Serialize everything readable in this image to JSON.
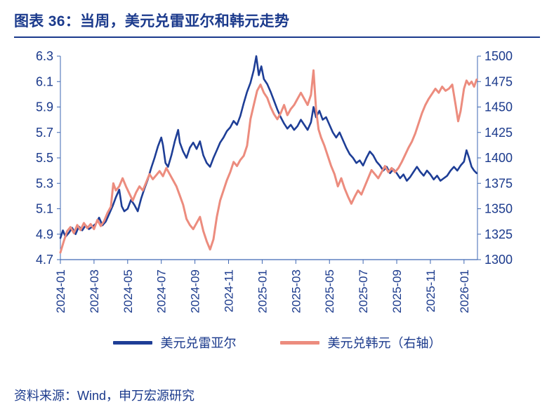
{
  "title": "图表 36：当周，美元兑雷亚尔和韩元走势",
  "source": "资料来源：Wind，申万宏源研究",
  "colors": {
    "text": "#1B3A8C",
    "axis": "#3E67B3"
  },
  "chart_data": {
    "type": "line",
    "title": "当周，美元兑雷亚尔和韩元走势",
    "grid": false,
    "legend_position": "bottom",
    "x_unit": "months since 2024-01",
    "x_max": 24.8,
    "x_ticks": {
      "labels": [
        "2024-01",
        "2024-03",
        "2024-05",
        "2024-07",
        "2024-09",
        "2024-11",
        "2025-01",
        "2025-03",
        "2025-05",
        "2025-07",
        "2025-09",
        "2025-11",
        "2026-01"
      ],
      "positions": [
        0,
        2,
        4,
        6,
        8,
        10,
        12,
        14,
        16,
        18,
        20,
        22,
        24
      ]
    },
    "left_axis": {
      "min": 4.7,
      "max": 6.3,
      "tick_labels": [
        "4.7",
        "4.9",
        "5.1",
        "5.3",
        "5.5",
        "5.7",
        "5.9",
        "6.1",
        "6.3"
      ]
    },
    "right_axis": {
      "min": 1300,
      "max": 1500,
      "tick_labels": [
        "1300",
        "1325",
        "1350",
        "1375",
        "1400",
        "1425",
        "1450",
        "1475",
        "1500"
      ]
    },
    "series": [
      {
        "id": "brl",
        "name": "美元兑雷亚尔",
        "axis": "left",
        "color": "#1E3E96",
        "points": [
          [
            0,
            4.87
          ],
          [
            0.15,
            4.93
          ],
          [
            0.3,
            4.88
          ],
          [
            0.5,
            4.91
          ],
          [
            0.7,
            4.95
          ],
          [
            0.9,
            4.9
          ],
          [
            1.1,
            4.96
          ],
          [
            1.3,
            4.93
          ],
          [
            1.5,
            4.97
          ],
          [
            1.7,
            4.94
          ],
          [
            1.9,
            4.96
          ],
          [
            2.1,
            4.98
          ],
          [
            2.3,
            5.03
          ],
          [
            2.5,
            4.97
          ],
          [
            2.7,
            5.0
          ],
          [
            2.9,
            5.06
          ],
          [
            3.1,
            5.12
          ],
          [
            3.3,
            5.19
          ],
          [
            3.5,
            5.25
          ],
          [
            3.65,
            5.12
          ],
          [
            3.8,
            5.08
          ],
          [
            4.0,
            5.1
          ],
          [
            4.2,
            5.17
          ],
          [
            4.4,
            5.13
          ],
          [
            4.6,
            5.08
          ],
          [
            4.8,
            5.18
          ],
          [
            5.0,
            5.26
          ],
          [
            5.2,
            5.33
          ],
          [
            5.4,
            5.42
          ],
          [
            5.6,
            5.5
          ],
          [
            5.8,
            5.59
          ],
          [
            6.0,
            5.66
          ],
          [
            6.1,
            5.6
          ],
          [
            6.25,
            5.46
          ],
          [
            6.4,
            5.43
          ],
          [
            6.6,
            5.52
          ],
          [
            6.8,
            5.63
          ],
          [
            7.0,
            5.72
          ],
          [
            7.1,
            5.62
          ],
          [
            7.3,
            5.55
          ],
          [
            7.5,
            5.5
          ],
          [
            7.7,
            5.58
          ],
          [
            7.9,
            5.62
          ],
          [
            8.1,
            5.57
          ],
          [
            8.3,
            5.63
          ],
          [
            8.5,
            5.52
          ],
          [
            8.7,
            5.46
          ],
          [
            8.9,
            5.43
          ],
          [
            9.1,
            5.5
          ],
          [
            9.3,
            5.56
          ],
          [
            9.5,
            5.62
          ],
          [
            9.7,
            5.66
          ],
          [
            9.9,
            5.71
          ],
          [
            10.1,
            5.74
          ],
          [
            10.3,
            5.79
          ],
          [
            10.5,
            5.76
          ],
          [
            10.7,
            5.83
          ],
          [
            10.9,
            5.93
          ],
          [
            11.1,
            6.02
          ],
          [
            11.3,
            6.09
          ],
          [
            11.5,
            6.19
          ],
          [
            11.65,
            6.3
          ],
          [
            11.8,
            6.15
          ],
          [
            11.95,
            6.22
          ],
          [
            12.1,
            6.12
          ],
          [
            12.3,
            6.08
          ],
          [
            12.5,
            6.02
          ],
          [
            12.7,
            5.95
          ],
          [
            12.9,
            5.88
          ],
          [
            13.1,
            5.82
          ],
          [
            13.3,
            5.77
          ],
          [
            13.5,
            5.73
          ],
          [
            13.7,
            5.76
          ],
          [
            13.9,
            5.72
          ],
          [
            14.1,
            5.75
          ],
          [
            14.3,
            5.8
          ],
          [
            14.5,
            5.76
          ],
          [
            14.7,
            5.72
          ],
          [
            14.9,
            5.78
          ],
          [
            15.05,
            5.9
          ],
          [
            15.2,
            5.82
          ],
          [
            15.4,
            5.87
          ],
          [
            15.6,
            5.8
          ],
          [
            15.8,
            5.82
          ],
          [
            16.0,
            5.76
          ],
          [
            16.2,
            5.7
          ],
          [
            16.4,
            5.66
          ],
          [
            16.6,
            5.7
          ],
          [
            16.8,
            5.64
          ],
          [
            17.0,
            5.58
          ],
          [
            17.2,
            5.53
          ],
          [
            17.4,
            5.5
          ],
          [
            17.6,
            5.46
          ],
          [
            17.8,
            5.48
          ],
          [
            18.0,
            5.44
          ],
          [
            18.2,
            5.5
          ],
          [
            18.4,
            5.55
          ],
          [
            18.6,
            5.52
          ],
          [
            18.8,
            5.47
          ],
          [
            19.0,
            5.44
          ],
          [
            19.2,
            5.4
          ],
          [
            19.4,
            5.43
          ],
          [
            19.6,
            5.38
          ],
          [
            19.8,
            5.41
          ],
          [
            20.0,
            5.38
          ],
          [
            20.2,
            5.34
          ],
          [
            20.4,
            5.37
          ],
          [
            20.6,
            5.32
          ],
          [
            20.8,
            5.35
          ],
          [
            21.0,
            5.39
          ],
          [
            21.2,
            5.43
          ],
          [
            21.4,
            5.39
          ],
          [
            21.6,
            5.36
          ],
          [
            21.8,
            5.4
          ],
          [
            22.0,
            5.37
          ],
          [
            22.2,
            5.33
          ],
          [
            22.4,
            5.36
          ],
          [
            22.6,
            5.32
          ],
          [
            22.8,
            5.34
          ],
          [
            23.0,
            5.36
          ],
          [
            23.2,
            5.4
          ],
          [
            23.4,
            5.43
          ],
          [
            23.6,
            5.4
          ],
          [
            23.8,
            5.44
          ],
          [
            24.0,
            5.47
          ],
          [
            24.15,
            5.56
          ],
          [
            24.3,
            5.5
          ],
          [
            24.45,
            5.43
          ],
          [
            24.6,
            5.4
          ],
          [
            24.75,
            5.38
          ]
        ]
      },
      {
        "id": "krw",
        "name": "美元兑韩元（右轴）",
        "axis": "right",
        "color": "#EC8C7E",
        "points": [
          [
            0,
            1307
          ],
          [
            0.2,
            1318
          ],
          [
            0.4,
            1328
          ],
          [
            0.6,
            1332
          ],
          [
            0.8,
            1326
          ],
          [
            1.0,
            1334
          ],
          [
            1.2,
            1329
          ],
          [
            1.4,
            1336
          ],
          [
            1.6,
            1331
          ],
          [
            1.8,
            1335
          ],
          [
            2.0,
            1330
          ],
          [
            2.2,
            1339
          ],
          [
            2.4,
            1333
          ],
          [
            2.6,
            1338
          ],
          [
            2.8,
            1346
          ],
          [
            3.0,
            1352
          ],
          [
            3.15,
            1375
          ],
          [
            3.3,
            1368
          ],
          [
            3.5,
            1372
          ],
          [
            3.7,
            1380
          ],
          [
            3.9,
            1372
          ],
          [
            4.1,
            1365
          ],
          [
            4.3,
            1358
          ],
          [
            4.5,
            1366
          ],
          [
            4.7,
            1372
          ],
          [
            4.9,
            1368
          ],
          [
            5.1,
            1376
          ],
          [
            5.3,
            1384
          ],
          [
            5.5,
            1379
          ],
          [
            5.7,
            1383
          ],
          [
            5.9,
            1387
          ],
          [
            6.1,
            1382
          ],
          [
            6.3,
            1390
          ],
          [
            6.5,
            1384
          ],
          [
            6.7,
            1378
          ],
          [
            6.9,
            1372
          ],
          [
            7.1,
            1363
          ],
          [
            7.3,
            1354
          ],
          [
            7.5,
            1340
          ],
          [
            7.7,
            1334
          ],
          [
            7.9,
            1330
          ],
          [
            8.1,
            1336
          ],
          [
            8.3,
            1342
          ],
          [
            8.5,
            1328
          ],
          [
            8.7,
            1318
          ],
          [
            8.9,
            1310
          ],
          [
            9.1,
            1320
          ],
          [
            9.3,
            1342
          ],
          [
            9.5,
            1358
          ],
          [
            9.7,
            1368
          ],
          [
            9.9,
            1378
          ],
          [
            10.1,
            1386
          ],
          [
            10.3,
            1396
          ],
          [
            10.5,
            1392
          ],
          [
            10.7,
            1398
          ],
          [
            10.9,
            1402
          ],
          [
            11.1,
            1412
          ],
          [
            11.3,
            1438
          ],
          [
            11.5,
            1452
          ],
          [
            11.7,
            1466
          ],
          [
            11.9,
            1472
          ],
          [
            12.1,
            1464
          ],
          [
            12.3,
            1459
          ],
          [
            12.5,
            1450
          ],
          [
            12.7,
            1443
          ],
          [
            12.9,
            1438
          ],
          [
            13.1,
            1444
          ],
          [
            13.3,
            1452
          ],
          [
            13.5,
            1442
          ],
          [
            13.7,
            1448
          ],
          [
            13.9,
            1452
          ],
          [
            14.1,
            1458
          ],
          [
            14.3,
            1464
          ],
          [
            14.5,
            1458
          ],
          [
            14.7,
            1452
          ],
          [
            14.9,
            1462
          ],
          [
            15.05,
            1486
          ],
          [
            15.2,
            1448
          ],
          [
            15.35,
            1428
          ],
          [
            15.5,
            1420
          ],
          [
            15.7,
            1412
          ],
          [
            15.9,
            1402
          ],
          [
            16.1,
            1392
          ],
          [
            16.3,
            1384
          ],
          [
            16.5,
            1372
          ],
          [
            16.7,
            1380
          ],
          [
            16.9,
            1370
          ],
          [
            17.1,
            1362
          ],
          [
            17.3,
            1355
          ],
          [
            17.5,
            1362
          ],
          [
            17.7,
            1368
          ],
          [
            17.9,
            1364
          ],
          [
            18.1,
            1372
          ],
          [
            18.3,
            1380
          ],
          [
            18.5,
            1388
          ],
          [
            18.7,
            1384
          ],
          [
            18.9,
            1380
          ],
          [
            19.1,
            1386
          ],
          [
            19.3,
            1392
          ],
          [
            19.5,
            1386
          ],
          [
            19.7,
            1390
          ],
          [
            19.9,
            1386
          ],
          [
            20.1,
            1390
          ],
          [
            20.3,
            1396
          ],
          [
            20.5,
            1403
          ],
          [
            20.7,
            1410
          ],
          [
            20.9,
            1416
          ],
          [
            21.1,
            1424
          ],
          [
            21.3,
            1434
          ],
          [
            21.5,
            1444
          ],
          [
            21.7,
            1452
          ],
          [
            21.9,
            1458
          ],
          [
            22.1,
            1463
          ],
          [
            22.3,
            1468
          ],
          [
            22.5,
            1464
          ],
          [
            22.7,
            1470
          ],
          [
            22.9,
            1466
          ],
          [
            23.1,
            1468
          ],
          [
            23.3,
            1472
          ],
          [
            23.5,
            1452
          ],
          [
            23.65,
            1436
          ],
          [
            23.8,
            1446
          ],
          [
            24.0,
            1468
          ],
          [
            24.15,
            1476
          ],
          [
            24.3,
            1472
          ],
          [
            24.45,
            1475
          ],
          [
            24.6,
            1470
          ],
          [
            24.75,
            1477
          ]
        ]
      }
    ]
  }
}
